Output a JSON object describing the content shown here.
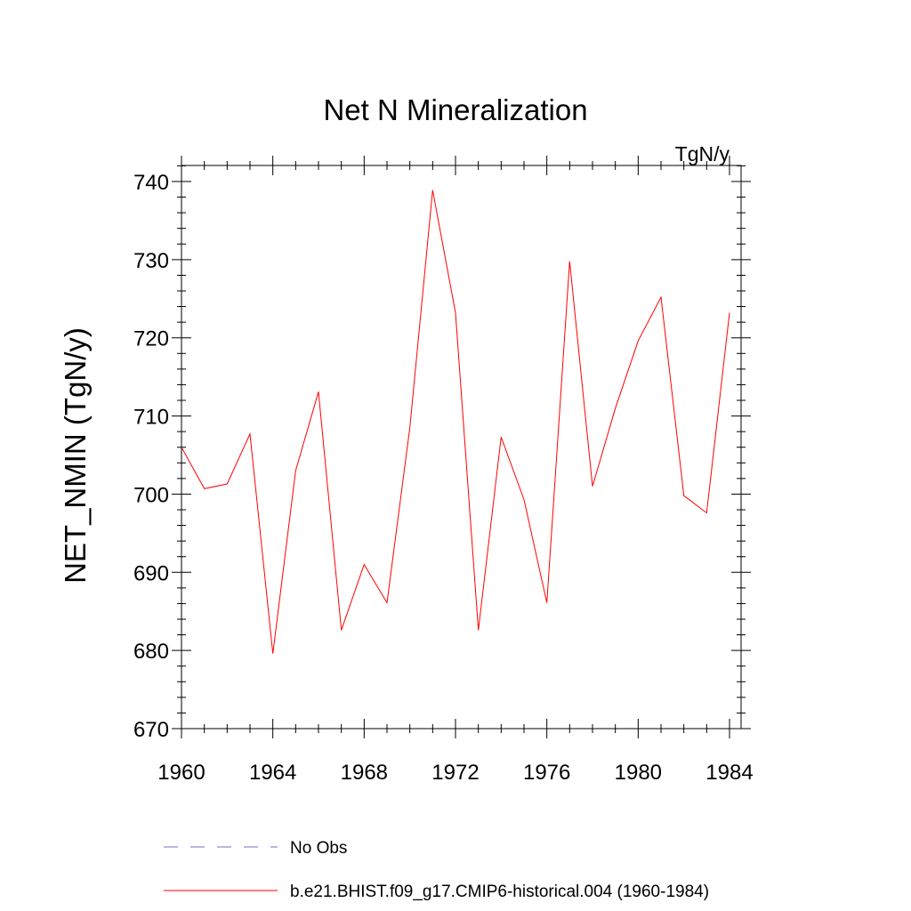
{
  "chart_data": {
    "type": "line",
    "title": "Net N Mineralization",
    "units_label": "TgN/y",
    "ylabel": "NET_NMIN  (TgN/y)",
    "xlabel": "",
    "xlim": [
      1960,
      1984
    ],
    "ylim": [
      670,
      742
    ],
    "x_ticks": [
      1960,
      1964,
      1968,
      1972,
      1976,
      1980,
      1984
    ],
    "y_ticks": [
      670,
      680,
      690,
      700,
      710,
      720,
      730,
      740
    ],
    "x": [
      1960,
      1961,
      1962,
      1963,
      1964,
      1965,
      1966,
      1967,
      1968,
      1969,
      1970,
      1971,
      1972,
      1973,
      1974,
      1975,
      1976,
      1977,
      1978,
      1979,
      1980,
      1981,
      1982,
      1983,
      1984
    ],
    "series": [
      {
        "name": "b.e21.BHIST.f09_g17.CMIP6-historical.004 (1960-1984)",
        "color": "#ff0000",
        "values": [
          706.0,
          700.7,
          701.3,
          707.7,
          679.6,
          703.0,
          713.1,
          682.6,
          691.0,
          686.1,
          708.5,
          738.9,
          723.2,
          682.6,
          707.3,
          699.3,
          686.1,
          729.8,
          701.0,
          711.0,
          719.6,
          725.2,
          699.8,
          697.6,
          723.2
        ]
      }
    ],
    "legend": [
      {
        "label": "No Obs",
        "color": "#6f6fbf",
        "style": "dashed"
      },
      {
        "label": "b.e21.BHIST.f09_g17.CMIP6-historical.004 (1960-1984)",
        "color": "#ff0000",
        "style": "solid"
      }
    ],
    "legend_position": "bottom",
    "grid": false
  }
}
